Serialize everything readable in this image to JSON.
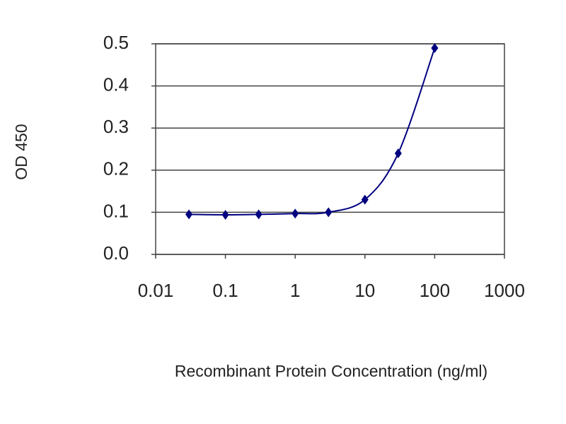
{
  "chart_data": {
    "type": "scatter",
    "x_label": "Recombinant Protein Concentration (ng/ml)",
    "y_label": "OD 450",
    "xscale": "log",
    "grid": true,
    "xlim": [
      0.01,
      1000
    ],
    "ylim": [
      0,
      0.5
    ],
    "xticks": [
      0.01,
      0.1,
      1,
      10,
      100,
      1000
    ],
    "yticks": [
      {
        "value": 0,
        "label": "0.0"
      },
      0.1,
      0.2,
      0.3,
      0.4,
      0.5
    ],
    "series": [
      {
        "color": "#000080",
        "x": [
          0.03,
          0.1,
          0.3,
          1,
          3,
          10,
          30,
          100
        ],
        "values": [
          0.095,
          0.094,
          0.095,
          0.097,
          0.1,
          0.13,
          0.24,
          0.49
        ]
      }
    ]
  }
}
